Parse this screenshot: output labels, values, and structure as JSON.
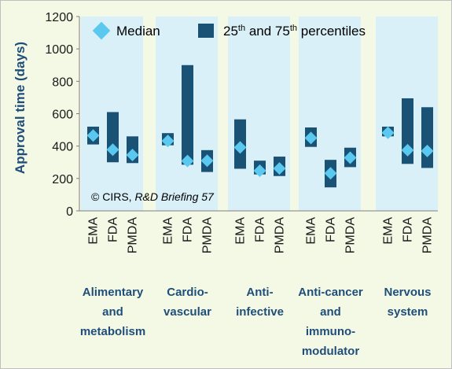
{
  "chart_data": {
    "type": "range-bar",
    "ylabel": "Approval time (days)",
    "ylim": [
      0,
      1200
    ],
    "yticks": [
      0,
      200,
      400,
      600,
      800,
      1000,
      1200
    ],
    "legend": {
      "median": "Median",
      "percentiles_prefix": "25",
      "percentiles_sup1": "th",
      "percentiles_mid": " and 75",
      "percentiles_sup2": "th",
      "percentiles_suffix": " percentiles"
    },
    "credit": {
      "prefix": "© CIRS, ",
      "italic": "R&D Briefing 57"
    },
    "groups": [
      {
        "label_lines": [
          "Alimentary",
          "and",
          "metabolism"
        ],
        "items": [
          {
            "agency": "EMA",
            "p25": 410,
            "p75": 520,
            "median": 465
          },
          {
            "agency": "FDA",
            "p25": 300,
            "p75": 610,
            "median": 378
          },
          {
            "agency": "PMDA",
            "p25": 295,
            "p75": 460,
            "median": 345
          }
        ]
      },
      {
        "label_lines": [
          "Cardio-",
          "vascular"
        ],
        "items": [
          {
            "agency": "EMA",
            "p25": 405,
            "p75": 480,
            "median": 432
          },
          {
            "agency": "FDA",
            "p25": 285,
            "p75": 900,
            "median": 308
          },
          {
            "agency": "PMDA",
            "p25": 240,
            "p75": 375,
            "median": 310
          }
        ]
      },
      {
        "label_lines": [
          "Anti-",
          "infective"
        ],
        "items": [
          {
            "agency": "EMA",
            "p25": 260,
            "p75": 565,
            "median": 392
          },
          {
            "agency": "FDA",
            "p25": 225,
            "p75": 310,
            "median": 248
          },
          {
            "agency": "PMDA",
            "p25": 215,
            "p75": 335,
            "median": 262
          }
        ]
      },
      {
        "label_lines": [
          "Anti-cancer",
          "and",
          "immuno-",
          "modulator"
        ],
        "items": [
          {
            "agency": "EMA",
            "p25": 395,
            "p75": 515,
            "median": 450
          },
          {
            "agency": "FDA",
            "p25": 145,
            "p75": 315,
            "median": 232
          },
          {
            "agency": "PMDA",
            "p25": 270,
            "p75": 390,
            "median": 328
          }
        ]
      },
      {
        "label_lines": [
          "Nervous",
          "system"
        ],
        "items": [
          {
            "agency": "EMA",
            "p25": 460,
            "p75": 520,
            "median": 482
          },
          {
            "agency": "FDA",
            "p25": 290,
            "p75": 695,
            "median": 375
          },
          {
            "agency": "PMDA",
            "p25": 265,
            "p75": 640,
            "median": 370
          }
        ]
      }
    ]
  },
  "colors": {
    "bar": "#1a5276",
    "median": "#5bc8f0",
    "band": "#d9f0f9",
    "background": "#f4f9e6",
    "axis_label": "#1f4e79"
  }
}
